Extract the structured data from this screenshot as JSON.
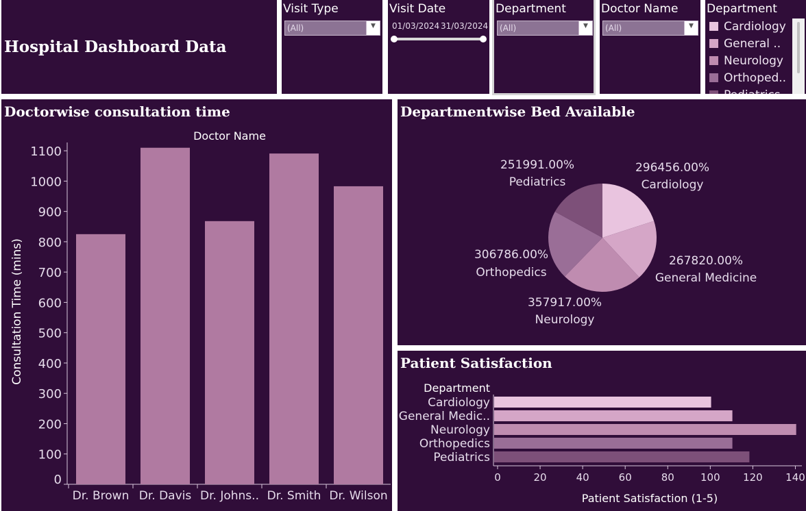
{
  "header": {
    "title": "Hospital Dashboard Data"
  },
  "filters": {
    "visit_type": {
      "label": "Visit Type",
      "value": "(All)"
    },
    "visit_date": {
      "label": "Visit Date",
      "start": "01/03/2024",
      "end": "31/03/2024"
    },
    "department": {
      "label": "Department",
      "value": "(All)"
    },
    "doctor_name": {
      "label": "Doctor Name",
      "value": "(All)"
    }
  },
  "legend": {
    "title": "Department",
    "items": [
      {
        "label": "Cardiology",
        "color": "#e9c4df"
      },
      {
        "label": "General ..",
        "color": "#d5a6c7"
      },
      {
        "label": "Neurology",
        "color": "#bf8cb0"
      },
      {
        "label": "Orthoped..",
        "color": "#9a6e97"
      },
      {
        "label": "Pediatrics",
        "color": "#7d5079"
      }
    ]
  },
  "panels": {
    "consultation": {
      "title": "Doctorwise consultation time"
    },
    "beds": {
      "title": "Departmentwise Bed Available"
    },
    "satisfaction": {
      "title": "Patient Satisfaction"
    }
  },
  "chart_data": [
    {
      "type": "bar",
      "title": "Doctorwise consultation time",
      "xlabel": "Doctor Name",
      "ylabel": "Consultation Time (mins)",
      "categories": [
        "Dr. Brown",
        "Dr. Davis",
        "Dr. Johns..",
        "Dr. Smith",
        "Dr. Wilson"
      ],
      "values": [
        825,
        1110,
        868,
        1091,
        983
      ],
      "ylim": [
        0,
        1150
      ],
      "yticks": [
        0,
        100,
        200,
        300,
        400,
        500,
        600,
        700,
        800,
        900,
        1000,
        1100
      ],
      "bar_color": "#b07aa1"
    },
    {
      "type": "pie",
      "title": "Departmentwise Bed Available",
      "slices": [
        {
          "label": "Cardiology",
          "value": 296456,
          "text": "296456.00%",
          "color": "#e9c4df"
        },
        {
          "label": "General Medicine",
          "value": 267820,
          "text": "267820.00%",
          "color": "#d5a6c7"
        },
        {
          "label": "Neurology",
          "value": 357917,
          "text": "357917.00%",
          "color": "#bf8cb0"
        },
        {
          "label": "Orthopedics",
          "value": 306786,
          "text": "306786.00%",
          "color": "#9a6e97"
        },
        {
          "label": "Pediatrics",
          "value": 251991,
          "text": "251991.00%",
          "color": "#7d5079"
        }
      ]
    },
    {
      "type": "bar",
      "orientation": "horizontal",
      "title": "Patient Satisfaction",
      "xlabel": "Patient Satisfaction (1-5)",
      "ylabel": "Department",
      "categories": [
        "Cardiology",
        "General Medic..",
        "Neurology",
        "Orthopedics",
        "Pediatrics"
      ],
      "values": [
        102,
        112,
        142,
        112,
        120
      ],
      "colors": [
        "#e9c4df",
        "#d5a6c7",
        "#bf8cb0",
        "#9a6e97",
        "#7d5079"
      ],
      "xlim": [
        0,
        145
      ],
      "xticks": [
        0,
        20,
        40,
        60,
        80,
        100,
        120,
        140
      ]
    }
  ]
}
